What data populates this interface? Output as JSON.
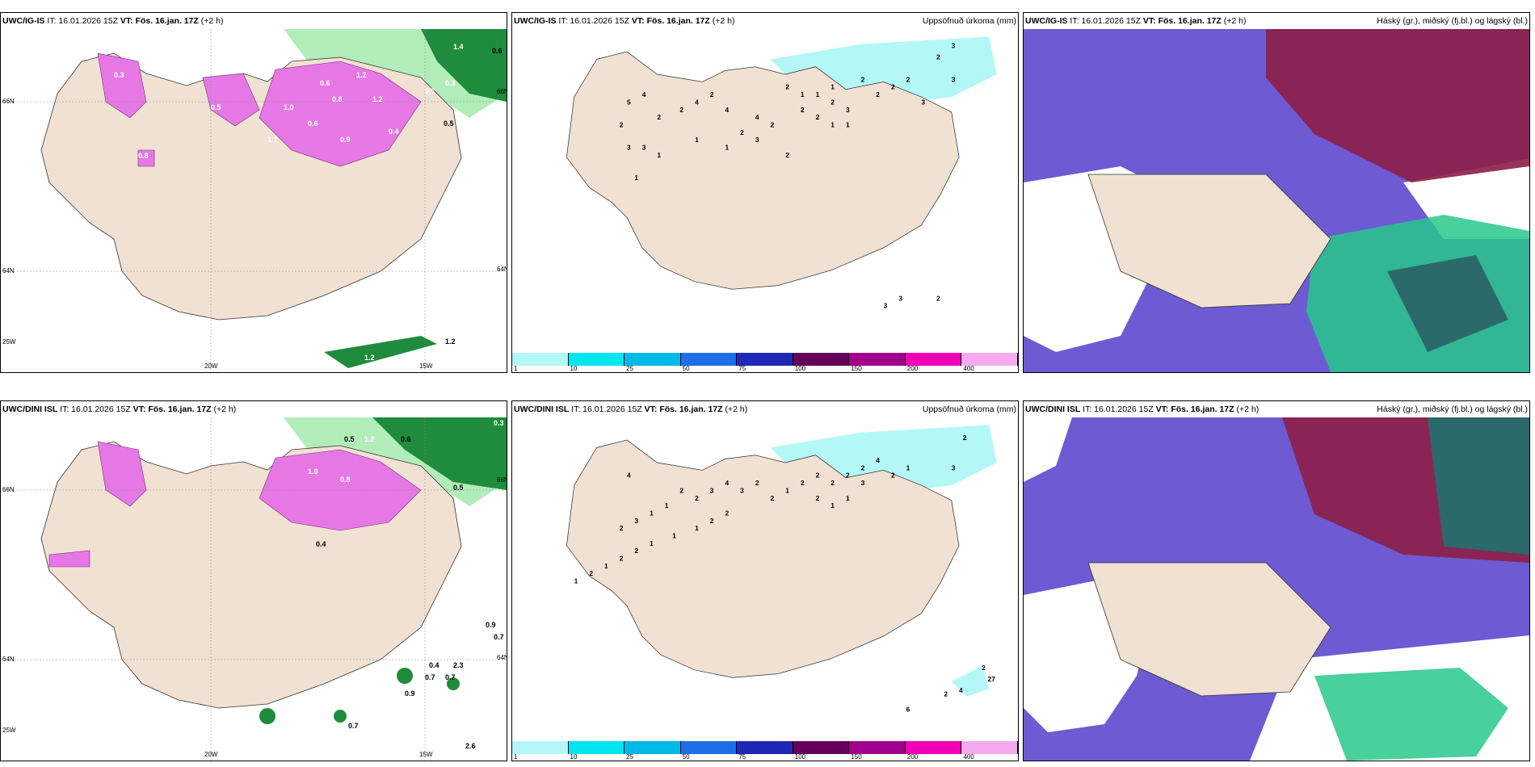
{
  "panels": [
    {
      "model": "UWC/IG-IS",
      "it": "IT: 16.01.2026 15Z",
      "vt_label": "VT:",
      "vt": "Fös. 16.jan. 17Z",
      "lead": "(+2 h)",
      "right": ""
    },
    {
      "model": "UWC/IG-IS",
      "it": "IT: 16.01.2026 15Z",
      "vt_label": "VT:",
      "vt": "Fös. 16.jan. 17Z",
      "lead": "(+2 h)",
      "right": "Uppsöfnuð úrkoma (mm)"
    },
    {
      "model": "UWC/IG-IS",
      "it": "IT: 16.01.2026 15Z",
      "vt_label": "VT:",
      "vt": "Fös. 16.jan. 17Z",
      "lead": "(+2 h)",
      "right": "Háský (gr.), miðský (fj.bl.) og lágský (bl.)"
    },
    {
      "model": "UWC/DINI ISL",
      "it": "IT: 16.01.2026 15Z",
      "vt_label": "VT:",
      "vt": "Fös. 16.jan. 17Z",
      "lead": "(+2 h)",
      "right": ""
    },
    {
      "model": "UWC/DINI ISL",
      "it": "IT: 16.01.2026 15Z",
      "vt_label": "VT:",
      "vt": "Fös. 16.jan. 17Z",
      "lead": "(+2 h)",
      "right": "Uppsöfnuð úrkoma (mm)"
    },
    {
      "model": "UWC/DINI ISL",
      "it": "IT: 16.01.2026 15Z",
      "vt_label": "VT:",
      "vt": "Fös. 16.jan. 17Z",
      "lead": "(+2 h)",
      "right": "Háský (gr.), miðský (fj.bl.) og lágský (bl.)"
    }
  ],
  "axes": {
    "lon": [
      "20W",
      "15W"
    ],
    "lat": [
      "66N",
      "64N"
    ],
    "lat_right": [
      "66N",
      "64N"
    ],
    "lon_left": "25W"
  },
  "legend": {
    "labels": [
      "1",
      "10",
      "25",
      "50",
      "75",
      "100",
      "150",
      "200",
      "400"
    ],
    "colors": [
      "#b4f7f7",
      "#00e6f0",
      "#00b9e6",
      "#1e6ee6",
      "#1e28b4",
      "#64005a",
      "#a0008c",
      "#f000b4",
      "#f5aaf0"
    ]
  },
  "precip_ig": {
    "values": [
      "3",
      "2",
      "3",
      "2",
      "2",
      "2",
      "3",
      "2",
      "3",
      "2",
      "2",
      "2",
      "1",
      "1",
      "4",
      "2",
      "4",
      "1",
      "3",
      "2",
      "2",
      "1",
      "1",
      "2",
      "1",
      "2",
      "5",
      "4",
      "4",
      "2",
      "2",
      "1",
      "1",
      "1",
      "3",
      "2",
      "3"
    ],
    "south": [
      "2",
      "3",
      "3"
    ]
  },
  "precip_dini": {
    "values": [
      "2",
      "3",
      "1",
      "2",
      "4",
      "2",
      "2",
      "2",
      "2",
      "2",
      "3",
      "1",
      "1",
      "2",
      "1",
      "2",
      "2",
      "3",
      "4",
      "3",
      "2",
      "2",
      "1",
      "1",
      "3",
      "2",
      "4",
      "2",
      "2",
      "1",
      "1",
      "1",
      "2",
      "2",
      "1",
      "2",
      "1"
    ],
    "south": [
      "2",
      "27",
      "4",
      "2",
      "6"
    ]
  },
  "snow_ig": [
    "0.6",
    "1.4",
    "1.2",
    "0.8",
    "0.6",
    "1.0",
    "0.3",
    "0.5",
    "0.4",
    "1.2",
    "0.9",
    "0.7",
    "0.6",
    "1.1",
    "0.8",
    "0.3",
    "0.5",
    "1.2",
    "1.2"
  ],
  "snow_dini": [
    "0.3",
    "0.5",
    "1.2",
    "0.6",
    "0.8",
    "1.0",
    "0.4",
    "0.5",
    "0.9",
    "0.7",
    "0.4",
    "0.7",
    "0.7",
    "2.3",
    "0.9",
    "0.5",
    "0.7",
    "0.8",
    "2.6"
  ],
  "colors": {
    "land": "#f0e1d2",
    "precip": "#b4f7f7",
    "snow": "#e678e6",
    "green": "#1e8c3c",
    "cloud_hi": "#6e5ad2",
    "cloud_red": "#8c1e46",
    "cloud_green": "#28c88c"
  }
}
